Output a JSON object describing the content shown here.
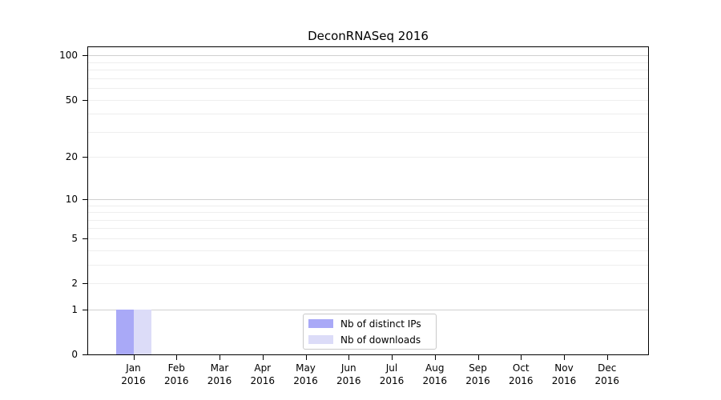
{
  "chart_data": {
    "type": "bar",
    "title": "DeconRNASeq 2016",
    "categories": [
      "Jan 2016",
      "Feb 2016",
      "Mar 2016",
      "Apr 2016",
      "May 2016",
      "Jun 2016",
      "Jul 2016",
      "Aug 2016",
      "Sep 2016",
      "Oct 2016",
      "Nov 2016",
      "Dec 2016"
    ],
    "series": [
      {
        "name": "Nb of distinct IPs",
        "color": "#a9a9f7",
        "values": [
          1,
          0,
          0,
          0,
          0,
          0,
          0,
          0,
          0,
          0,
          0,
          0
        ]
      },
      {
        "name": "Nb of downloads",
        "color": "#dcdcf8",
        "values": [
          1,
          0,
          0,
          0,
          0,
          0,
          0,
          0,
          0,
          0,
          0,
          0
        ]
      }
    ],
    "xlabel": "",
    "ylabel": "",
    "y_axis": {
      "scale": "log1p",
      "ticks": [
        0,
        1,
        2,
        5,
        10,
        20,
        50,
        100
      ],
      "major_gridlines": [
        1,
        10,
        100
      ],
      "minor_gridlines": [
        2,
        3,
        4,
        5,
        6,
        7,
        8,
        9,
        20,
        30,
        40,
        50,
        60,
        70,
        80,
        90
      ],
      "ylim": [
        0,
        113.6
      ]
    },
    "grid": true,
    "legend_position": "lower center"
  }
}
